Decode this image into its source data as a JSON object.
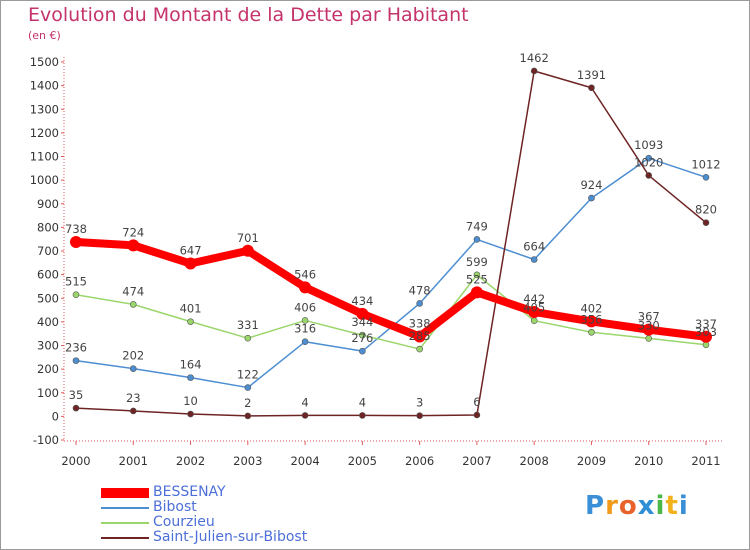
{
  "title": "Evolution du Montant de la Dette par Habitant",
  "subtitle": "(en €)",
  "logo_text": "Proxiti",
  "chart_data": {
    "type": "line",
    "categories": [
      "2000",
      "2001",
      "2002",
      "2003",
      "2004",
      "2005",
      "2006",
      "2007",
      "2008",
      "2009",
      "2010",
      "2011"
    ],
    "ylim": [
      -100,
      1500
    ],
    "y_ticks": [
      -100,
      0,
      100,
      200,
      300,
      400,
      500,
      600,
      700,
      800,
      900,
      1000,
      1100,
      1200,
      1300,
      1400,
      1500
    ],
    "grid": false,
    "legend_position": "bottom-left",
    "series": [
      {
        "name": "BESSENAY",
        "color": "#ff0000",
        "bold": true,
        "values": [
          738,
          724,
          647,
          701,
          546,
          434,
          338,
          525,
          442,
          402,
          367,
          337
        ]
      },
      {
        "name": "Bibost",
        "color": "#4d8ed1",
        "bold": false,
        "values": [
          236,
          202,
          164,
          122,
          316,
          276,
          478,
          749,
          664,
          924,
          1093,
          1012
        ]
      },
      {
        "name": "Courzieu",
        "color": "#9ad66b",
        "bold": false,
        "values": [
          515,
          474,
          401,
          331,
          406,
          344,
          285,
          599,
          405,
          356,
          330,
          303
        ]
      },
      {
        "name": "Saint-Julien-sur-Bibost",
        "color": "#6e2424",
        "bold": false,
        "values": [
          35,
          23,
          10,
          2,
          4,
          4,
          3,
          6,
          1462,
          1391,
          1020,
          820
        ]
      }
    ]
  }
}
